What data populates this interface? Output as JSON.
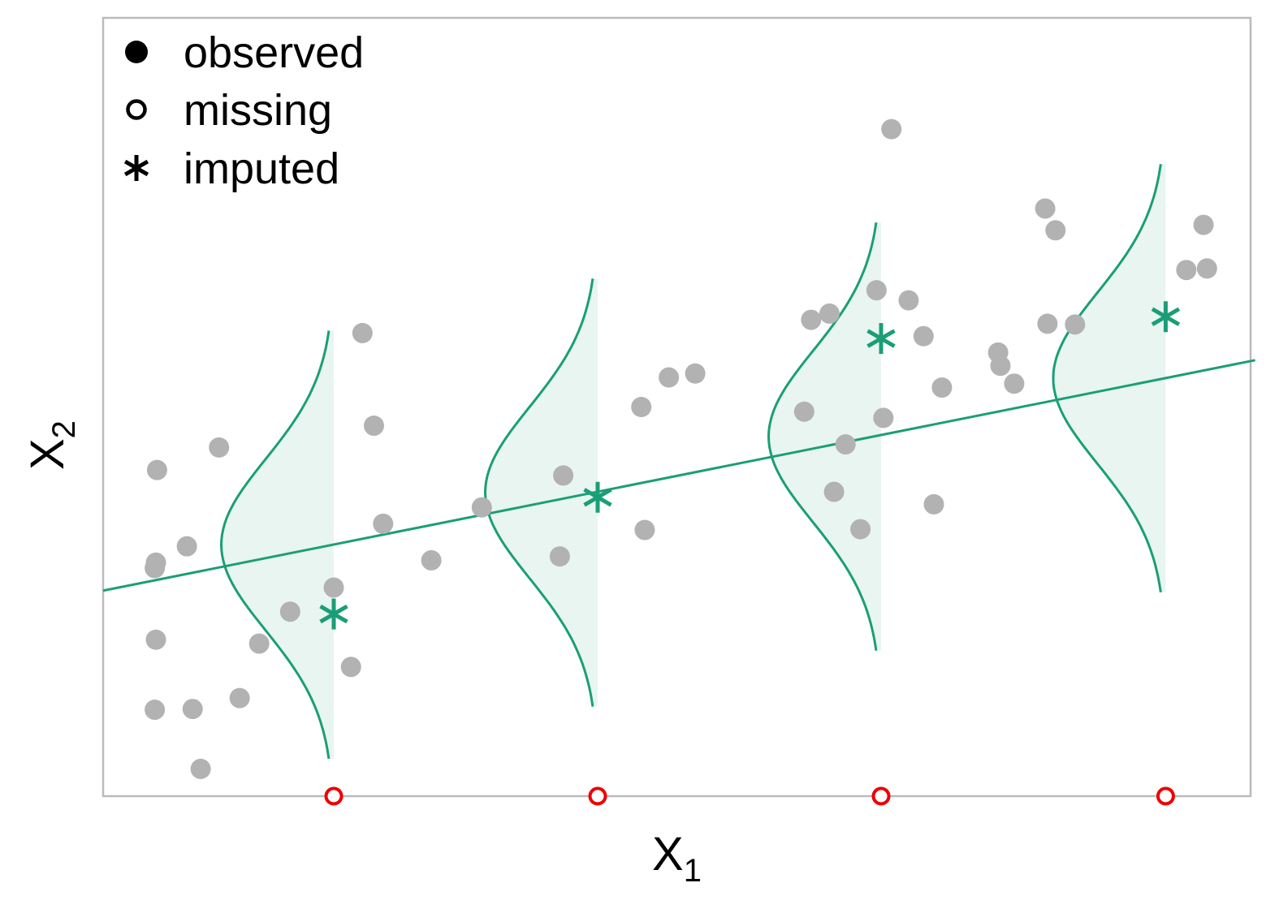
{
  "chart_data": {
    "type": "scatter",
    "title": "",
    "xlabel": {
      "base": "X",
      "sub": "1"
    },
    "ylabel": {
      "base": "X",
      "sub": "2"
    },
    "xlim": [
      0,
      100
    ],
    "ylim": [
      0,
      100
    ],
    "ticks_shown": false,
    "grid": false,
    "legend": {
      "placement": "top-left",
      "entries": [
        {
          "label": "observed",
          "symbol": "filled-circle"
        },
        {
          "label": "missing",
          "symbol": "open-circle"
        },
        {
          "label": "imputed",
          "symbol": "asterisk"
        }
      ]
    },
    "colors": {
      "observed": "#b2b2b2",
      "missing": "#ee0000",
      "imputed": "#1b9e77",
      "density_fill": "#e8f5f0",
      "frame": "#bbbbbb"
    },
    "regression_line": {
      "intercept": 26.4,
      "slope": 0.295
    },
    "observed": [
      {
        "x": 4.7,
        "y": 41.9
      },
      {
        "x": 4.6,
        "y": 30.0
      },
      {
        "x": 4.5,
        "y": 29.3
      },
      {
        "x": 7.3,
        "y": 32.1
      },
      {
        "x": 4.6,
        "y": 20.1
      },
      {
        "x": 4.5,
        "y": 11.1
      },
      {
        "x": 7.8,
        "y": 11.2
      },
      {
        "x": 8.5,
        "y": 3.5
      },
      {
        "x": 10.1,
        "y": 44.8
      },
      {
        "x": 11.9,
        "y": 12.6
      },
      {
        "x": 13.6,
        "y": 19.6
      },
      {
        "x": 16.3,
        "y": 23.7
      },
      {
        "x": 20.1,
        "y": 26.8
      },
      {
        "x": 22.6,
        "y": 59.5
      },
      {
        "x": 21.6,
        "y": 16.6
      },
      {
        "x": 23.6,
        "y": 47.6
      },
      {
        "x": 24.4,
        "y": 35.0
      },
      {
        "x": 28.6,
        "y": 30.3
      },
      {
        "x": 33.0,
        "y": 37.1
      },
      {
        "x": 40.1,
        "y": 41.2
      },
      {
        "x": 39.8,
        "y": 30.8
      },
      {
        "x": 47.2,
        "y": 34.2
      },
      {
        "x": 46.9,
        "y": 50.0
      },
      {
        "x": 49.3,
        "y": 53.8
      },
      {
        "x": 51.6,
        "y": 54.3
      },
      {
        "x": 63.3,
        "y": 62.0
      },
      {
        "x": 68.7,
        "y": 85.7
      },
      {
        "x": 67.4,
        "y": 65.0
      },
      {
        "x": 70.2,
        "y": 63.7
      },
      {
        "x": 61.7,
        "y": 61.2
      },
      {
        "x": 61.1,
        "y": 49.4
      },
      {
        "x": 64.7,
        "y": 45.2
      },
      {
        "x": 63.7,
        "y": 39.1
      },
      {
        "x": 66.0,
        "y": 34.3
      },
      {
        "x": 68.0,
        "y": 48.6
      },
      {
        "x": 71.5,
        "y": 59.1
      },
      {
        "x": 73.1,
        "y": 52.5
      },
      {
        "x": 72.4,
        "y": 37.5
      },
      {
        "x": 78.0,
        "y": 57.0
      },
      {
        "x": 78.2,
        "y": 55.3
      },
      {
        "x": 79.4,
        "y": 53.0
      },
      {
        "x": 82.3,
        "y": 60.7
      },
      {
        "x": 82.1,
        "y": 75.5
      },
      {
        "x": 83.0,
        "y": 72.7
      },
      {
        "x": 84.7,
        "y": 60.6
      },
      {
        "x": 94.4,
        "y": 67.6
      },
      {
        "x": 96.2,
        "y": 67.8
      },
      {
        "x": 95.9,
        "y": 73.4
      }
    ],
    "missing": [
      {
        "x": 20.1,
        "y": 0
      },
      {
        "x": 43.1,
        "y": 0
      },
      {
        "x": 67.8,
        "y": 0
      },
      {
        "x": 92.6,
        "y": 0
      }
    ],
    "imputed": [
      {
        "x": 20.1,
        "y": 23.4
      },
      {
        "x": 43.1,
        "y": 38.4
      },
      {
        "x": 67.8,
        "y": 58.8
      },
      {
        "x": 92.6,
        "y": 61.6
      }
    ],
    "conditional_densities": [
      {
        "x": 20.1,
        "center_y": 32.3,
        "spread": 11.0,
        "width": 9.8
      },
      {
        "x": 43.1,
        "center_y": 39.0,
        "spread": 11.0,
        "width": 9.8
      },
      {
        "x": 67.8,
        "center_y": 46.2,
        "spread": 11.0,
        "width": 9.8
      },
      {
        "x": 92.6,
        "center_y": 53.7,
        "spread": 11.0,
        "width": 9.8
      }
    ]
  }
}
